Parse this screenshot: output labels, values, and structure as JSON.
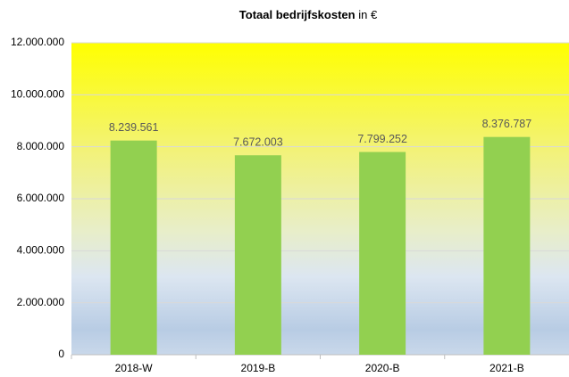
{
  "chart_data": {
    "type": "bar",
    "title": [
      "Totaal bedrijfskosten",
      "in €"
    ],
    "categories": [
      "2018-W",
      "2019-B",
      "2020-B",
      "2021-B"
    ],
    "values": [
      8239561,
      7672003,
      7799252,
      8376787
    ],
    "value_labels": [
      "8.239.561",
      "7.672.003",
      "7.799.252",
      "8.376.787"
    ],
    "color": "#92d050",
    "ylim": [
      0,
      12000000
    ],
    "yticks": [
      0,
      {
        "value": 2000000,
        "label": "2.000.000"
      },
      {
        "value": 4000000,
        "label": "4.000.000"
      },
      {
        "value": 6000000,
        "label": "6.000.000"
      },
      {
        "value": 8000000,
        "label": "8.000.000"
      },
      {
        "value": 10000000,
        "label": "10.000.000"
      },
      {
        "value": 12000000,
        "label": "12.000.000"
      }
    ],
    "grid": true
  }
}
